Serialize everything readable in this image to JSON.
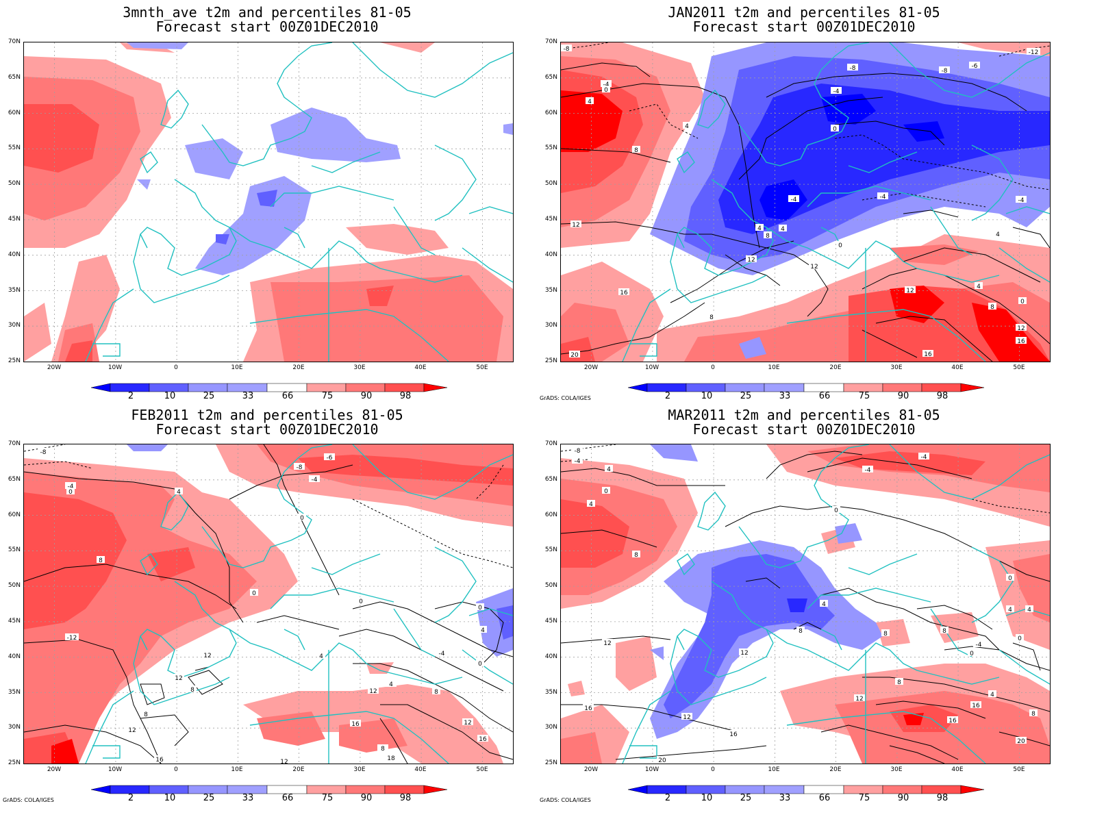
{
  "panels": [
    {
      "title_line1": "3mnth_ave t2m and percentiles 81-05",
      "title_line2": "Forecast start 00Z01DEC2010",
      "grads_credit": ""
    },
    {
      "title_line1": "JAN2011 t2m and percentiles 81-05",
      "title_line2": "Forecast start 00Z01DEC2010",
      "grads_credit": "GrADS: COLA/IGES"
    },
    {
      "title_line1": "FEB2011 t2m and percentiles 81-05",
      "title_line2": "Forecast start 00Z01DEC2010",
      "grads_credit": "GrADS: COLA/IGES"
    },
    {
      "title_line1": "MAR2011 t2m and percentiles 81-05",
      "title_line2": "Forecast start 00Z01DEC2010",
      "grads_credit": "GrADS: COLA/IGES"
    }
  ],
  "map_axes": {
    "lat_labels": [
      "70N",
      "65N",
      "60N",
      "55N",
      "50N",
      "45N",
      "40N",
      "35N",
      "30N",
      "25N"
    ],
    "lon_labels": [
      "20W",
      "10W",
      "0",
      "10E",
      "20E",
      "30E",
      "40E",
      "50E"
    ],
    "extent": {
      "lon_min": -25,
      "lon_max": 55,
      "lat_min": 25,
      "lat_max": 70
    }
  },
  "colorbar": {
    "labels": [
      "2",
      "10",
      "25",
      "33",
      "66",
      "75",
      "90",
      "98"
    ],
    "colors": [
      "#0000ff",
      "#2828ff",
      "#6060ff",
      "#9696ff",
      "#a0a0ff",
      "#ffffff",
      "#ffa0a0",
      "#ff7878",
      "#ff5050",
      "#ff0000"
    ]
  },
  "legend_meaning": {
    "blue": "below-normal percentile",
    "red": "above-normal percentile"
  },
  "contour_labels": {
    "jan": [
      "-8",
      "-8",
      "-6",
      "-12",
      "-4",
      "0",
      "-4",
      "0",
      "4",
      "4",
      "8",
      "12",
      "16",
      "20",
      "4",
      "-4",
      "-4",
      "0",
      "4",
      "8",
      "12",
      "12",
      "8",
      "12",
      "4",
      "8",
      "0",
      "4",
      "12",
      "16",
      "16",
      "-8",
      "-4"
    ],
    "feb": [
      "-8",
      "-4",
      "0",
      "4",
      "8",
      "-6",
      "-8",
      "-4",
      "0",
      "0",
      "0",
      "-12",
      "12",
      "12",
      "8",
      "8",
      "12",
      "16",
      "4",
      "8",
      "12",
      "0",
      "4",
      "8",
      "12",
      "16",
      "16",
      "18",
      "12",
      "-4",
      "0",
      "4"
    ],
    "mar": [
      "-8",
      "-4",
      "4",
      "0",
      "8",
      "4",
      "-4",
      "-4",
      "0",
      "0",
      "4",
      "4",
      "8",
      "12",
      "12",
      "12",
      "16",
      "16",
      "20",
      "20",
      "8",
      "8",
      "0",
      "-4",
      "0",
      "12",
      "8",
      "16",
      "16",
      "4",
      "4",
      "8"
    ]
  }
}
